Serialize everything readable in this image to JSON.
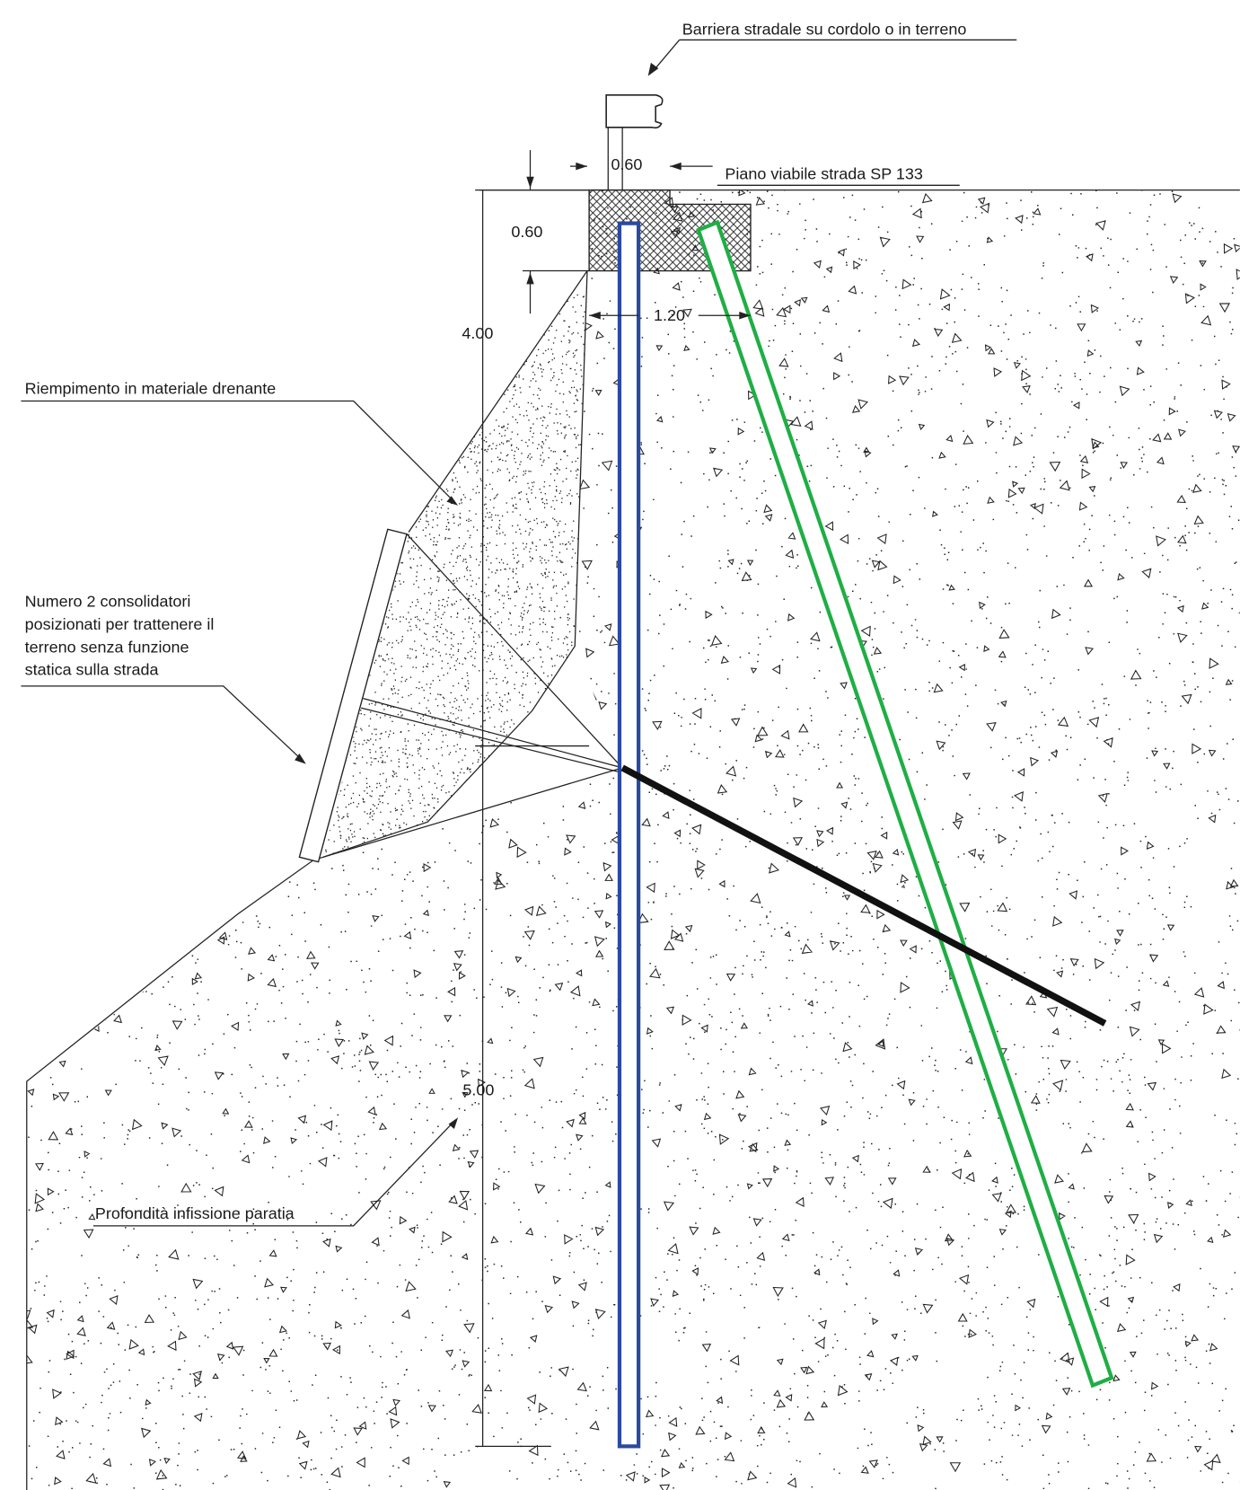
{
  "labels": {
    "barrier": "Barriera stradale su cordolo o in terreno",
    "curb_width": "0.60",
    "road": "Piano viabile strada SP 133",
    "curb_height": "0.60",
    "height_upper": "4.00",
    "anchor_offset": "1.20",
    "fill": "Riempimento in materiale drenante",
    "consolidators": [
      "Numero 2 consolidatori",
      "posizionati per trattenere il",
      "terreno senza funzione",
      "statica sulla strada"
    ],
    "depth_value": "5.00",
    "depth": "Profondità infissione paratia"
  }
}
